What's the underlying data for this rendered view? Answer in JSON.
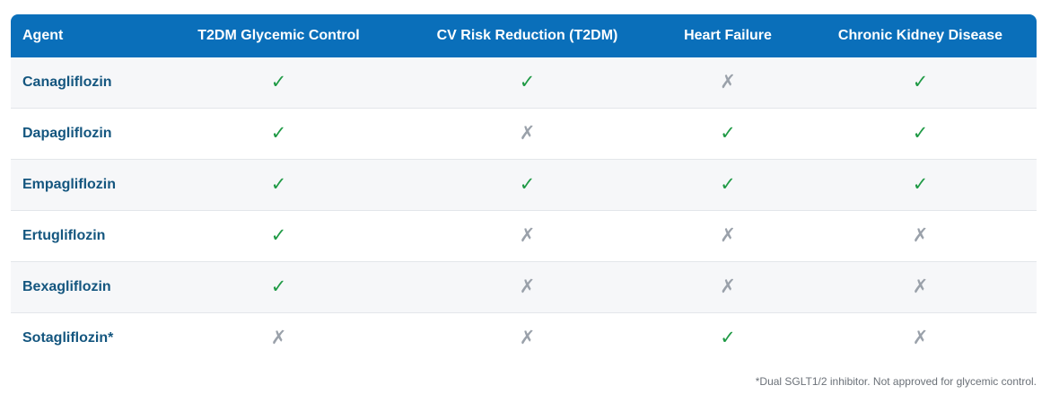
{
  "table": {
    "headers": [
      "Agent",
      "T2DM Glycemic Control",
      "CV Risk Reduction (T2DM)",
      "Heart Failure",
      "Chronic Kidney Disease"
    ],
    "rows": [
      {
        "agent": "Canagliflozin",
        "marks": [
          "✓",
          "✓",
          "✗",
          "✓"
        ]
      },
      {
        "agent": "Dapagliflozin",
        "marks": [
          "✓",
          "✗",
          "✓",
          "✓"
        ]
      },
      {
        "agent": "Empagliflozin",
        "marks": [
          "✓",
          "✓",
          "✓",
          "✓"
        ]
      },
      {
        "agent": "Ertugliflozin",
        "marks": [
          "✓",
          "✗",
          "✗",
          "✗"
        ]
      },
      {
        "agent": "Bexagliflozin",
        "marks": [
          "✓",
          "✗",
          "✗",
          "✗"
        ]
      },
      {
        "agent": "Sotagliflozin*",
        "marks": [
          "✗",
          "✗",
          "✓",
          "✗"
        ]
      }
    ]
  },
  "footnote": "*Dual SGLT1/2 inhibitor. Not approved for glycemic control.",
  "colors": {
    "header_bg": "#0a6fba",
    "agent_text": "#14567f",
    "check": "#1f9a45",
    "cross": "#9aa1aa"
  }
}
